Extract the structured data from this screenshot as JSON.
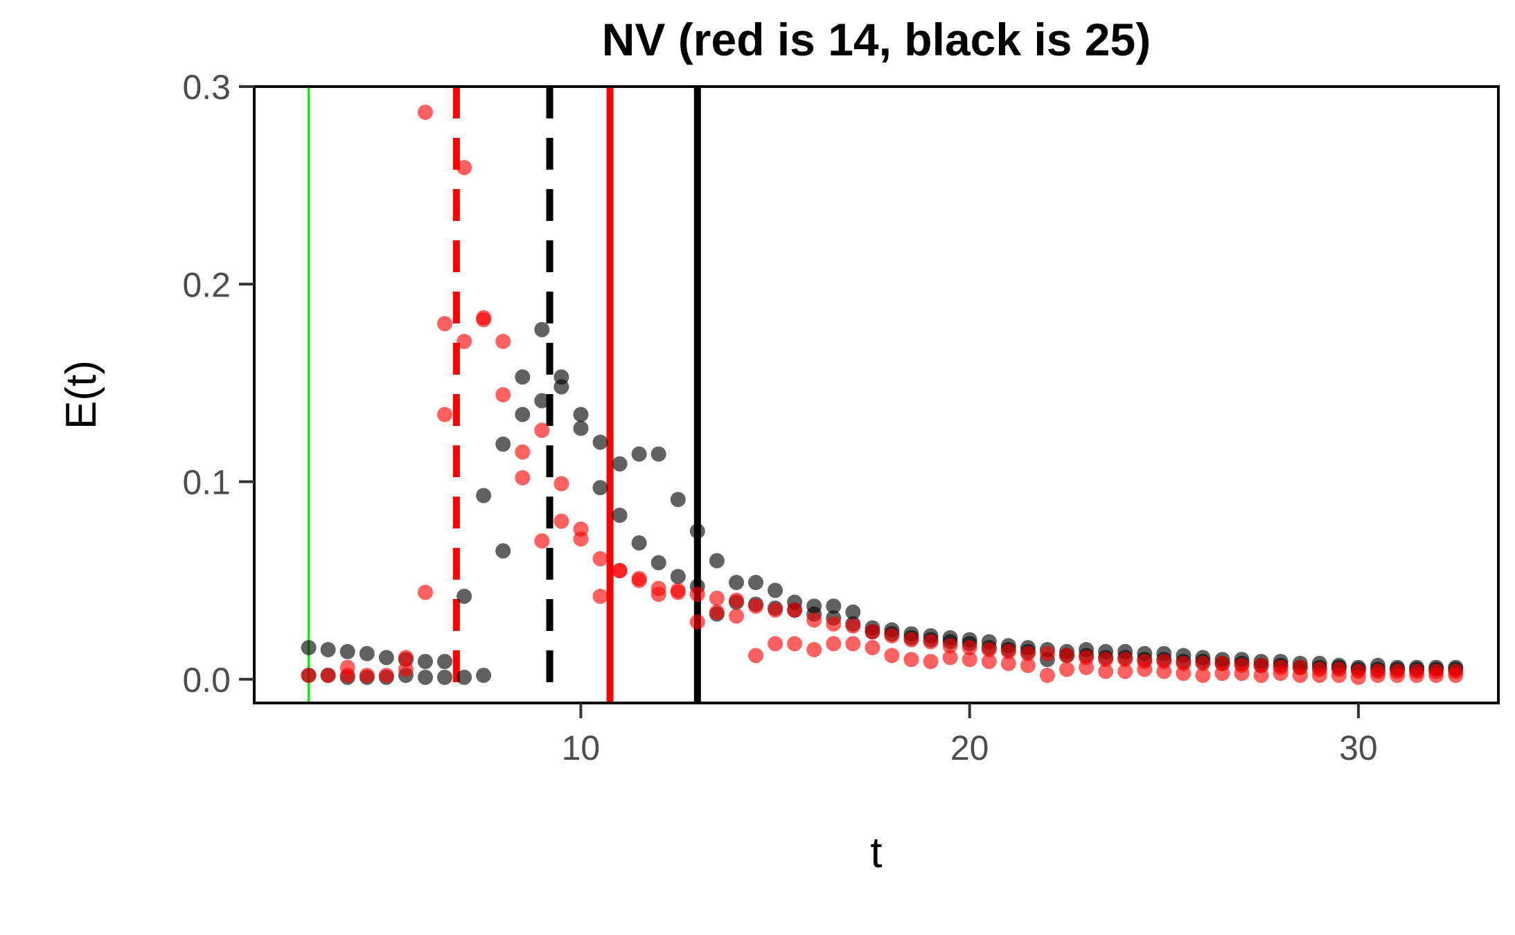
{
  "chart_data": {
    "type": "scatter",
    "title": "NV (red is 14, black is 25)",
    "xlabel": "t",
    "ylabel": "E(t)",
    "xlim": [
      1.6,
      33.6
    ],
    "ylim": [
      -0.012,
      0.3
    ],
    "x_ticks": [
      10,
      20,
      30
    ],
    "y_ticks": [
      0.0,
      0.1,
      0.2,
      0.3
    ],
    "x_tick_labels": [
      "10",
      "20",
      "30"
    ],
    "y_tick_labels": [
      "0.0",
      "0.1",
      "0.2",
      "0.3"
    ],
    "grid": false,
    "colors": {
      "red_series": "#ff0000",
      "black_series": "#000000",
      "green_line": "#00ee00"
    },
    "vertical_lines": [
      {
        "x": 3.0,
        "color": "#00ee00",
        "style": "solid",
        "weight": "thin"
      },
      {
        "x": 6.8,
        "color": "#ff0000",
        "style": "dashed",
        "weight": "thick"
      },
      {
        "x": 9.2,
        "color": "#000000",
        "style": "dashed",
        "weight": "thick"
      },
      {
        "x": 10.75,
        "color": "#ff0000",
        "style": "solid",
        "weight": "thick"
      },
      {
        "x": 13.0,
        "color": "#000000",
        "style": "solid",
        "weight": "thick"
      }
    ],
    "series": [
      {
        "color": "#000000",
        "points": [
          [
            3.0,
            0.016
          ],
          [
            3.5,
            0.015
          ],
          [
            4.0,
            0.014
          ],
          [
            4.5,
            0.013
          ],
          [
            5.0,
            0.011
          ],
          [
            5.5,
            0.01
          ],
          [
            6.0,
            0.009
          ],
          [
            6.5,
            0.009
          ],
          [
            3.0,
            0.002
          ],
          [
            3.5,
            0.002
          ],
          [
            4.0,
            0.001
          ],
          [
            4.5,
            0.001
          ],
          [
            5.0,
            0.001
          ],
          [
            5.5,
            0.002
          ],
          [
            6.0,
            0.001
          ],
          [
            6.5,
            0.001
          ],
          [
            7.0,
            0.001
          ],
          [
            7.5,
            0.002
          ],
          [
            7.0,
            0.042
          ],
          [
            7.5,
            0.093
          ],
          [
            8.0,
            0.119
          ],
          [
            8.0,
            0.065
          ],
          [
            8.5,
            0.153
          ],
          [
            8.5,
            0.134
          ],
          [
            9.0,
            0.177
          ],
          [
            9.0,
            0.141
          ],
          [
            9.5,
            0.153
          ],
          [
            9.5,
            0.148
          ],
          [
            10.0,
            0.134
          ],
          [
            10.0,
            0.127
          ],
          [
            10.5,
            0.12
          ],
          [
            10.5,
            0.097
          ],
          [
            11.0,
            0.109
          ],
          [
            11.0,
            0.083
          ],
          [
            11.5,
            0.114
          ],
          [
            11.5,
            0.069
          ],
          [
            12.0,
            0.114
          ],
          [
            12.0,
            0.059
          ],
          [
            12.5,
            0.091
          ],
          [
            12.5,
            0.052
          ],
          [
            13.0,
            0.075
          ],
          [
            13.0,
            0.047
          ],
          [
            13.5,
            0.06
          ],
          [
            13.5,
            0.033
          ],
          [
            14.0,
            0.049
          ],
          [
            14.0,
            0.039
          ],
          [
            14.5,
            0.049
          ],
          [
            14.5,
            0.038
          ],
          [
            15.0,
            0.045
          ],
          [
            15.0,
            0.036
          ],
          [
            15.5,
            0.039
          ],
          [
            15.5,
            0.035
          ],
          [
            16.0,
            0.037
          ],
          [
            16.0,
            0.033
          ],
          [
            16.5,
            0.037
          ],
          [
            16.5,
            0.031
          ],
          [
            17.0,
            0.034
          ],
          [
            17.0,
            0.028
          ],
          [
            17.5,
            0.026
          ],
          [
            17.5,
            0.024
          ],
          [
            18.0,
            0.025
          ],
          [
            18.0,
            0.023
          ],
          [
            18.5,
            0.023
          ],
          [
            18.5,
            0.021
          ],
          [
            19.0,
            0.022
          ],
          [
            19.0,
            0.02
          ],
          [
            19.5,
            0.021
          ],
          [
            19.5,
            0.019
          ],
          [
            20.0,
            0.02
          ],
          [
            20.0,
            0.018
          ],
          [
            20.5,
            0.019
          ],
          [
            20.5,
            0.016
          ],
          [
            21.0,
            0.017
          ],
          [
            21.0,
            0.015
          ],
          [
            21.5,
            0.016
          ],
          [
            21.5,
            0.014
          ],
          [
            22.0,
            0.015
          ],
          [
            22.0,
            0.01
          ],
          [
            22.5,
            0.014
          ],
          [
            22.5,
            0.012
          ],
          [
            23.0,
            0.015
          ],
          [
            23.0,
            0.012
          ],
          [
            23.5,
            0.014
          ],
          [
            23.5,
            0.011
          ],
          [
            24.0,
            0.014
          ],
          [
            24.0,
            0.011
          ],
          [
            24.5,
            0.013
          ],
          [
            24.5,
            0.01
          ],
          [
            25.0,
            0.013
          ],
          [
            25.0,
            0.01
          ],
          [
            25.5,
            0.012
          ],
          [
            25.5,
            0.009
          ],
          [
            26.0,
            0.011
          ],
          [
            26.0,
            0.009
          ],
          [
            26.5,
            0.01
          ],
          [
            26.5,
            0.008
          ],
          [
            27.0,
            0.01
          ],
          [
            27.0,
            0.008
          ],
          [
            27.5,
            0.009
          ],
          [
            27.5,
            0.007
          ],
          [
            28.0,
            0.009
          ],
          [
            28.0,
            0.007
          ],
          [
            28.5,
            0.008
          ],
          [
            28.5,
            0.006
          ],
          [
            29.0,
            0.008
          ],
          [
            29.0,
            0.006
          ],
          [
            29.5,
            0.007
          ],
          [
            29.5,
            0.006
          ],
          [
            30.0,
            0.006
          ],
          [
            30.0,
            0.005
          ],
          [
            30.5,
            0.007
          ],
          [
            30.5,
            0.005
          ],
          [
            31.0,
            0.006
          ],
          [
            31.0,
            0.005
          ],
          [
            31.5,
            0.006
          ],
          [
            31.5,
            0.005
          ],
          [
            32.0,
            0.006
          ],
          [
            32.0,
            0.005
          ],
          [
            32.5,
            0.006
          ],
          [
            32.5,
            0.005
          ]
        ]
      },
      {
        "color": "#ff0000",
        "points": [
          [
            3.0,
            0.002
          ],
          [
            3.5,
            0.002
          ],
          [
            4.0,
            0.006
          ],
          [
            4.0,
            0.002
          ],
          [
            4.5,
            0.002
          ],
          [
            5.0,
            0.002
          ],
          [
            5.5,
            0.011
          ],
          [
            5.5,
            0.005
          ],
          [
            6.0,
            0.287
          ],
          [
            6.0,
            0.044
          ],
          [
            6.5,
            0.18
          ],
          [
            6.5,
            0.134
          ],
          [
            7.0,
            0.259
          ],
          [
            7.0,
            0.171
          ],
          [
            7.5,
            0.183
          ],
          [
            7.5,
            0.182
          ],
          [
            8.0,
            0.171
          ],
          [
            8.0,
            0.144
          ],
          [
            8.5,
            0.115
          ],
          [
            8.5,
            0.102
          ],
          [
            9.0,
            0.126
          ],
          [
            9.0,
            0.07
          ],
          [
            9.5,
            0.099
          ],
          [
            9.5,
            0.08
          ],
          [
            10.0,
            0.076
          ],
          [
            10.0,
            0.071
          ],
          [
            10.5,
            0.061
          ],
          [
            10.5,
            0.042
          ],
          [
            11.0,
            0.055
          ],
          [
            11.0,
            0.055
          ],
          [
            11.5,
            0.051
          ],
          [
            11.5,
            0.05
          ],
          [
            12.0,
            0.046
          ],
          [
            12.0,
            0.043
          ],
          [
            12.5,
            0.045
          ],
          [
            12.5,
            0.044
          ],
          [
            13.0,
            0.043
          ],
          [
            13.0,
            0.029
          ],
          [
            13.5,
            0.041
          ],
          [
            13.5,
            0.034
          ],
          [
            14.0,
            0.04
          ],
          [
            14.0,
            0.032
          ],
          [
            14.5,
            0.037
          ],
          [
            14.5,
            0.012
          ],
          [
            15.0,
            0.035
          ],
          [
            15.0,
            0.018
          ],
          [
            15.5,
            0.035
          ],
          [
            15.5,
            0.018
          ],
          [
            16.0,
            0.03
          ],
          [
            16.0,
            0.015
          ],
          [
            16.5,
            0.028
          ],
          [
            16.5,
            0.018
          ],
          [
            17.0,
            0.027
          ],
          [
            17.0,
            0.018
          ],
          [
            17.5,
            0.024
          ],
          [
            17.5,
            0.016
          ],
          [
            18.0,
            0.022
          ],
          [
            18.0,
            0.012
          ],
          [
            18.5,
            0.02
          ],
          [
            18.5,
            0.01
          ],
          [
            19.0,
            0.019
          ],
          [
            19.0,
            0.009
          ],
          [
            19.5,
            0.017
          ],
          [
            19.5,
            0.011
          ],
          [
            20.0,
            0.016
          ],
          [
            20.0,
            0.01
          ],
          [
            20.5,
            0.015
          ],
          [
            20.5,
            0.009
          ],
          [
            21.0,
            0.014
          ],
          [
            21.0,
            0.008
          ],
          [
            21.5,
            0.013
          ],
          [
            21.5,
            0.007
          ],
          [
            22.0,
            0.013
          ],
          [
            22.0,
            0.002
          ],
          [
            22.5,
            0.012
          ],
          [
            22.5,
            0.005
          ],
          [
            23.0,
            0.011
          ],
          [
            23.0,
            0.006
          ],
          [
            23.5,
            0.01
          ],
          [
            23.5,
            0.004
          ],
          [
            24.0,
            0.01
          ],
          [
            24.0,
            0.004
          ],
          [
            24.5,
            0.009
          ],
          [
            24.5,
            0.005
          ],
          [
            25.0,
            0.009
          ],
          [
            25.0,
            0.004
          ],
          [
            25.5,
            0.008
          ],
          [
            25.5,
            0.003
          ],
          [
            26.0,
            0.008
          ],
          [
            26.0,
            0.002
          ],
          [
            26.5,
            0.008
          ],
          [
            26.5,
            0.003
          ],
          [
            27.0,
            0.007
          ],
          [
            27.0,
            0.003
          ],
          [
            27.5,
            0.007
          ],
          [
            27.5,
            0.002
          ],
          [
            28.0,
            0.006
          ],
          [
            28.0,
            0.003
          ],
          [
            28.5,
            0.006
          ],
          [
            28.5,
            0.002
          ],
          [
            29.0,
            0.005
          ],
          [
            29.0,
            0.002
          ],
          [
            29.5,
            0.005
          ],
          [
            29.5,
            0.002
          ],
          [
            30.0,
            0.004
          ],
          [
            30.0,
            0.001
          ],
          [
            30.5,
            0.004
          ],
          [
            30.5,
            0.002
          ],
          [
            31.0,
            0.004
          ],
          [
            31.0,
            0.002
          ],
          [
            31.5,
            0.004
          ],
          [
            31.5,
            0.002
          ],
          [
            32.0,
            0.004
          ],
          [
            32.0,
            0.002
          ],
          [
            32.5,
            0.004
          ],
          [
            32.5,
            0.002
          ]
        ]
      }
    ]
  }
}
